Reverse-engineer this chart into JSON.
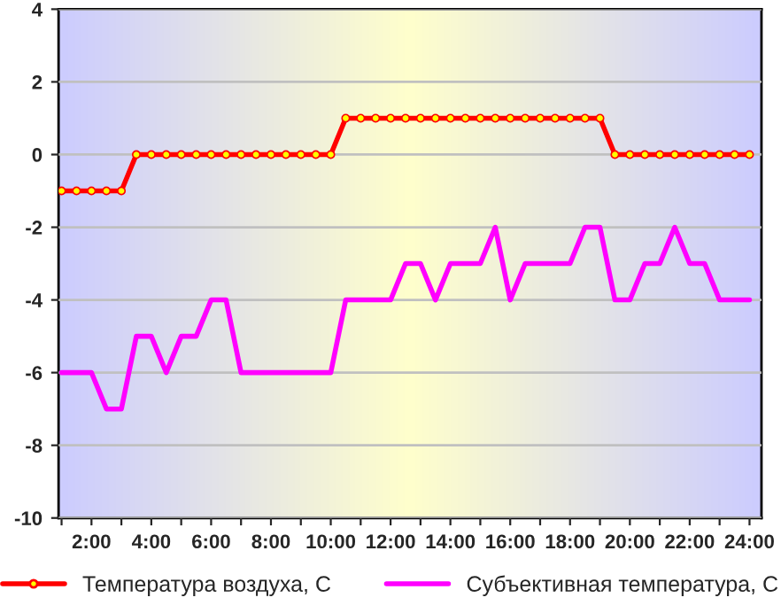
{
  "chart_data": {
    "type": "line",
    "x": [
      1,
      1.5,
      2,
      2.5,
      3,
      3.5,
      4,
      4.5,
      5,
      5.5,
      6,
      6.5,
      7,
      7.5,
      8,
      8.5,
      9,
      9.5,
      10,
      10.5,
      11,
      11.5,
      12,
      12.5,
      13,
      13.5,
      14,
      14.5,
      15,
      15.5,
      16,
      16.5,
      17,
      17.5,
      18,
      18.5,
      19,
      19.5,
      20,
      20.5,
      21,
      21.5,
      22,
      22.5,
      23,
      23.5,
      24
    ],
    "series": [
      {
        "name": "Температура воздуха, С",
        "color": "#ff0000",
        "marker": "circle",
        "values": [
          -1,
          -1,
          -1,
          -1,
          -1,
          0,
          0,
          0,
          0,
          0,
          0,
          0,
          0,
          0,
          0,
          0,
          0,
          0,
          0,
          1,
          1,
          1,
          1,
          1,
          1,
          1,
          1,
          1,
          1,
          1,
          1,
          1,
          1,
          1,
          1,
          1,
          1,
          0,
          0,
          0,
          0,
          0,
          0,
          0,
          0,
          0,
          0
        ]
      },
      {
        "name": "Субъективная температура, С",
        "color": "#ff00ff",
        "marker": "none",
        "values": [
          -6,
          -6,
          -6,
          -7,
          -7,
          -5,
          -5,
          -6,
          -5,
          -5,
          -4,
          -4,
          -6,
          -6,
          -6,
          -6,
          -6,
          -6,
          -6,
          -4,
          -4,
          -4,
          -4,
          -3,
          -3,
          -4,
          -3,
          -3,
          -3,
          -2,
          -4,
          -3,
          -3,
          -3,
          -3,
          -2,
          -2,
          -4,
          -4,
          -3,
          -3,
          -2,
          -3,
          -3,
          -4,
          -4,
          -4
        ]
      }
    ],
    "xlim": [
      0.9,
      24.4
    ],
    "xticks": [
      {
        "value": 1,
        "label": null
      },
      {
        "value": 2,
        "label": "2:00"
      },
      {
        "value": 3,
        "label": null
      },
      {
        "value": 4,
        "label": "4:00"
      },
      {
        "value": 5,
        "label": null
      },
      {
        "value": 6,
        "label": "6:00"
      },
      {
        "value": 7,
        "label": null
      },
      {
        "value": 8,
        "label": "8:00"
      },
      {
        "value": 9,
        "label": null
      },
      {
        "value": 10,
        "label": "10:00"
      },
      {
        "value": 11,
        "label": null
      },
      {
        "value": 12,
        "label": "12:00"
      },
      {
        "value": 13,
        "label": null
      },
      {
        "value": 14,
        "label": "14:00"
      },
      {
        "value": 15,
        "label": null
      },
      {
        "value": 16,
        "label": "16:00"
      },
      {
        "value": 17,
        "label": null
      },
      {
        "value": 18,
        "label": "18:00"
      },
      {
        "value": 19,
        "label": null
      },
      {
        "value": 20,
        "label": "20:00"
      },
      {
        "value": 21,
        "label": null
      },
      {
        "value": 22,
        "label": "22:00"
      },
      {
        "value": 23,
        "label": null
      },
      {
        "value": 24,
        "label": "24:00"
      }
    ],
    "ylim": [
      -10,
      4
    ],
    "yticks": [
      -10,
      -8,
      -6,
      -4,
      -2,
      0,
      2,
      4
    ],
    "grid": "y",
    "legend": "bottom"
  }
}
